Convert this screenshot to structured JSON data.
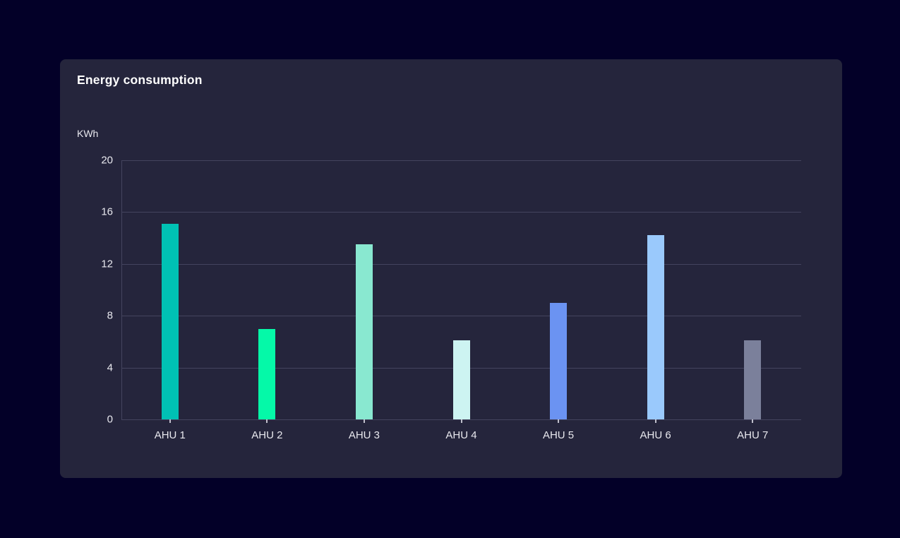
{
  "page": {
    "background_color": "#030028",
    "card_background": "#25253C"
  },
  "card": {
    "title": "Energy consumption",
    "unit_label": "KWh"
  },
  "chart_data": {
    "type": "bar",
    "title": "Energy consumption",
    "ylabel": "KWh",
    "xlabel": "",
    "categories": [
      "AHU 1",
      "AHU 2",
      "AHU 3",
      "AHU 4",
      "AHU 5",
      "AHU 6",
      "AHU 7"
    ],
    "values": [
      15.1,
      7,
      13.5,
      6.1,
      9,
      14.2,
      6.1
    ],
    "bar_colors": [
      "#00C1B4",
      "#05F9A8",
      "#89E8D0",
      "#CDF4F2",
      "#6B93F2",
      "#9AC9FC",
      "#7B809B"
    ],
    "ylim": [
      0,
      20
    ],
    "yticks": [
      0,
      4,
      8,
      12,
      16,
      20
    ],
    "grid": true,
    "legend": false,
    "colors": {
      "gridline": "#44445E",
      "axis_line": "#44445E",
      "tick_mark": "#C0C0CC",
      "tick_text": "#E8E8EE",
      "title_text": "#FFFFFF"
    }
  }
}
